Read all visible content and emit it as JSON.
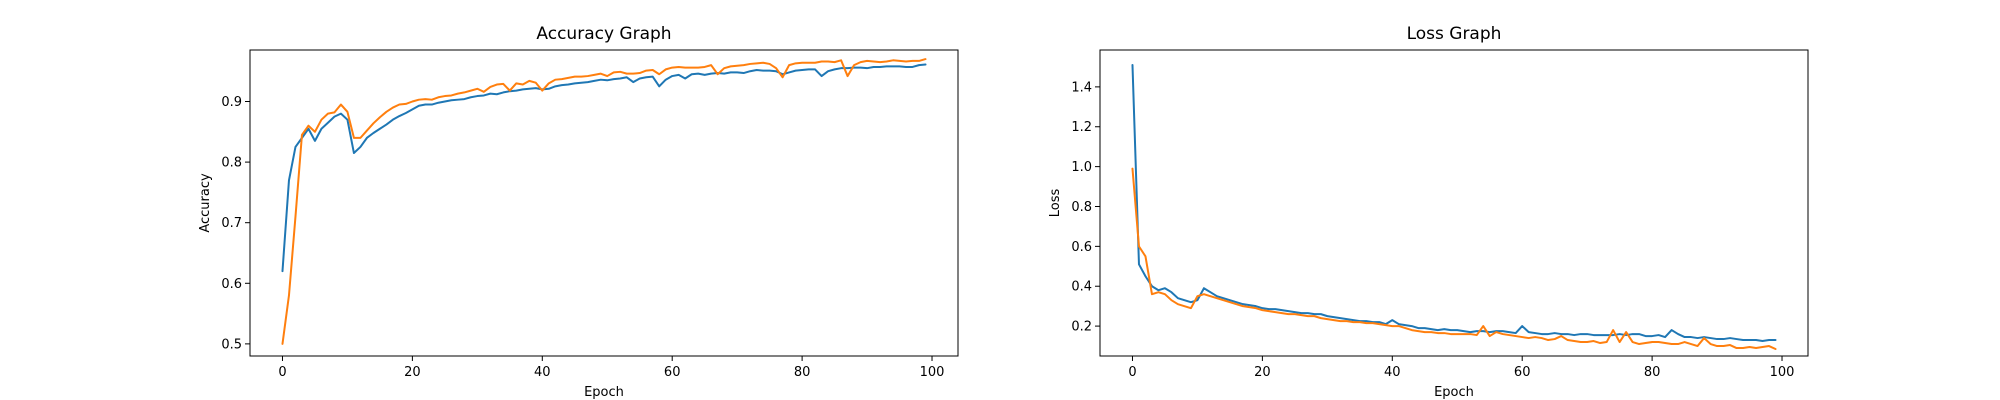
{
  "chart_data": [
    {
      "type": "line",
      "title": "Accuracy Graph",
      "xlabel": "Epoch",
      "ylabel": "Accuracy",
      "xlim": [
        -5,
        104
      ],
      "ylim": [
        0.48,
        0.985
      ],
      "xticks": [
        0,
        20,
        40,
        60,
        80,
        100
      ],
      "yticks": [
        0.5,
        0.6,
        0.7,
        0.8,
        0.9
      ],
      "ytick_labels": [
        "0.5",
        "0.6",
        "0.7",
        "0.8",
        "0.9"
      ],
      "grid": false,
      "legend": "none",
      "series": [
        {
          "color": "#1f77b4",
          "values": [
            0.62,
            0.77,
            0.825,
            0.84,
            0.855,
            0.835,
            0.855,
            0.865,
            0.875,
            0.88,
            0.87,
            0.815,
            0.825,
            0.84,
            0.848,
            0.855,
            0.862,
            0.87,
            0.876,
            0.881,
            0.887,
            0.893,
            0.895,
            0.895,
            0.898,
            0.9,
            0.902,
            0.903,
            0.904,
            0.907,
            0.909,
            0.91,
            0.913,
            0.912,
            0.915,
            0.917,
            0.918,
            0.92,
            0.921,
            0.922,
            0.92,
            0.921,
            0.925,
            0.927,
            0.928,
            0.93,
            0.931,
            0.932,
            0.934,
            0.936,
            0.935,
            0.937,
            0.938,
            0.94,
            0.932,
            0.938,
            0.94,
            0.941,
            0.925,
            0.936,
            0.942,
            0.944,
            0.938,
            0.945,
            0.946,
            0.944,
            0.946,
            0.947,
            0.946,
            0.948,
            0.948,
            0.947,
            0.95,
            0.952,
            0.951,
            0.951,
            0.95,
            0.945,
            0.948,
            0.951,
            0.952,
            0.953,
            0.953,
            0.942,
            0.95,
            0.953,
            0.955,
            0.955,
            0.956,
            0.956,
            0.955,
            0.957,
            0.957,
            0.958,
            0.958,
            0.958,
            0.957,
            0.957,
            0.96,
            0.961
          ]
        },
        {
          "color": "#ff7f0e",
          "values": [
            0.5,
            0.58,
            0.71,
            0.845,
            0.86,
            0.85,
            0.87,
            0.88,
            0.882,
            0.895,
            0.883,
            0.84,
            0.84,
            0.852,
            0.864,
            0.874,
            0.883,
            0.89,
            0.895,
            0.896,
            0.9,
            0.903,
            0.904,
            0.903,
            0.907,
            0.909,
            0.91,
            0.913,
            0.915,
            0.918,
            0.921,
            0.916,
            0.924,
            0.928,
            0.929,
            0.918,
            0.93,
            0.928,
            0.934,
            0.931,
            0.918,
            0.93,
            0.936,
            0.937,
            0.939,
            0.941,
            0.941,
            0.942,
            0.944,
            0.946,
            0.942,
            0.948,
            0.949,
            0.946,
            0.946,
            0.947,
            0.951,
            0.952,
            0.945,
            0.953,
            0.956,
            0.957,
            0.956,
            0.956,
            0.956,
            0.957,
            0.96,
            0.945,
            0.955,
            0.958,
            0.959,
            0.96,
            0.962,
            0.963,
            0.964,
            0.962,
            0.955,
            0.94,
            0.96,
            0.963,
            0.964,
            0.964,
            0.964,
            0.966,
            0.966,
            0.965,
            0.968,
            0.942,
            0.96,
            0.965,
            0.967,
            0.966,
            0.965,
            0.966,
            0.968,
            0.967,
            0.966,
            0.967,
            0.967,
            0.97
          ]
        }
      ]
    },
    {
      "type": "line",
      "title": "Loss Graph",
      "xlabel": "Epoch",
      "ylabel": "Loss",
      "xlim": [
        -5,
        104
      ],
      "ylim": [
        0.05,
        1.585
      ],
      "xticks": [
        0,
        20,
        40,
        60,
        80,
        100
      ],
      "yticks": [
        0.2,
        0.4,
        0.6,
        0.8,
        1.0,
        1.2,
        1.4
      ],
      "ytick_labels": [
        "0.2",
        "0.4",
        "0.6",
        "0.8",
        "1.0",
        "1.2",
        "1.4"
      ],
      "grid": false,
      "legend": "none",
      "series": [
        {
          "color": "#1f77b4",
          "values": [
            1.51,
            0.51,
            0.45,
            0.4,
            0.38,
            0.39,
            0.37,
            0.34,
            0.33,
            0.32,
            0.33,
            0.39,
            0.37,
            0.35,
            0.34,
            0.33,
            0.32,
            0.31,
            0.305,
            0.3,
            0.29,
            0.285,
            0.285,
            0.28,
            0.275,
            0.27,
            0.265,
            0.265,
            0.26,
            0.26,
            0.25,
            0.245,
            0.24,
            0.235,
            0.23,
            0.225,
            0.225,
            0.22,
            0.22,
            0.21,
            0.23,
            0.21,
            0.205,
            0.2,
            0.19,
            0.19,
            0.185,
            0.18,
            0.185,
            0.18,
            0.18,
            0.175,
            0.17,
            0.175,
            0.175,
            0.17,
            0.175,
            0.175,
            0.17,
            0.165,
            0.2,
            0.17,
            0.165,
            0.16,
            0.16,
            0.165,
            0.16,
            0.16,
            0.155,
            0.16,
            0.16,
            0.155,
            0.155,
            0.155,
            0.155,
            0.16,
            0.155,
            0.16,
            0.16,
            0.15,
            0.15,
            0.155,
            0.145,
            0.18,
            0.16,
            0.145,
            0.145,
            0.14,
            0.145,
            0.14,
            0.135,
            0.135,
            0.14,
            0.135,
            0.13,
            0.13,
            0.13,
            0.125,
            0.13,
            0.13
          ]
        },
        {
          "color": "#ff7f0e",
          "values": [
            0.99,
            0.6,
            0.55,
            0.36,
            0.37,
            0.36,
            0.33,
            0.31,
            0.3,
            0.29,
            0.35,
            0.36,
            0.35,
            0.34,
            0.33,
            0.32,
            0.31,
            0.3,
            0.295,
            0.29,
            0.28,
            0.275,
            0.27,
            0.265,
            0.26,
            0.26,
            0.255,
            0.25,
            0.25,
            0.24,
            0.235,
            0.23,
            0.225,
            0.225,
            0.22,
            0.22,
            0.215,
            0.215,
            0.21,
            0.205,
            0.2,
            0.2,
            0.19,
            0.18,
            0.175,
            0.17,
            0.17,
            0.165,
            0.165,
            0.16,
            0.16,
            0.16,
            0.16,
            0.155,
            0.2,
            0.15,
            0.17,
            0.16,
            0.155,
            0.15,
            0.145,
            0.14,
            0.145,
            0.14,
            0.13,
            0.135,
            0.15,
            0.13,
            0.125,
            0.12,
            0.12,
            0.125,
            0.115,
            0.12,
            0.18,
            0.12,
            0.17,
            0.12,
            0.11,
            0.115,
            0.12,
            0.12,
            0.115,
            0.11,
            0.11,
            0.12,
            0.11,
            0.1,
            0.14,
            0.11,
            0.1,
            0.1,
            0.105,
            0.09,
            0.09,
            0.095,
            0.09,
            0.095,
            0.1,
            0.085
          ]
        }
      ]
    }
  ]
}
